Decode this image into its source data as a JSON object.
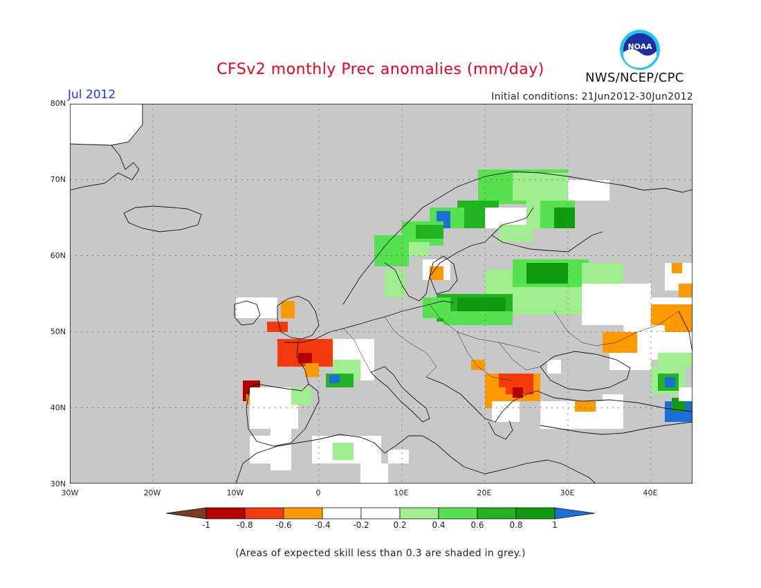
{
  "header": {
    "title": "CFSv2 monthly Prec anomalies (mm/day)",
    "month": "Jul 2012",
    "initial_conditions": "Initial conditions: 21Jun2012-30Jun2012",
    "agency": "NWS/NCEP/CPC",
    "logo_text": "NOAA"
  },
  "axes": {
    "lat_labels": [
      "80N",
      "70N",
      "60N",
      "50N",
      "40N",
      "30N"
    ],
    "lon_labels": [
      "30W",
      "20W",
      "10W",
      "0",
      "10E",
      "20E",
      "30E",
      "40E"
    ]
  },
  "colorbar": {
    "labels": [
      "-1",
      "-0.8",
      "-0.6",
      "-0.4",
      "-0.2",
      "0.2",
      "0.4",
      "0.6",
      "0.8",
      "1"
    ],
    "colors": [
      "#7a3b1e",
      "#b40000",
      "#f23a0d",
      "#ff9900",
      "#ffffff",
      "#a0ee90",
      "#56e24f",
      "#22b322",
      "#109a10",
      "#1e6ed8"
    ],
    "mask_color": "#c8c8c8"
  },
  "footnote": "(Areas of expected skill less than 0.3 are shaded in grey.)",
  "icons": {
    "logo": "noaa-logo-icon"
  }
}
